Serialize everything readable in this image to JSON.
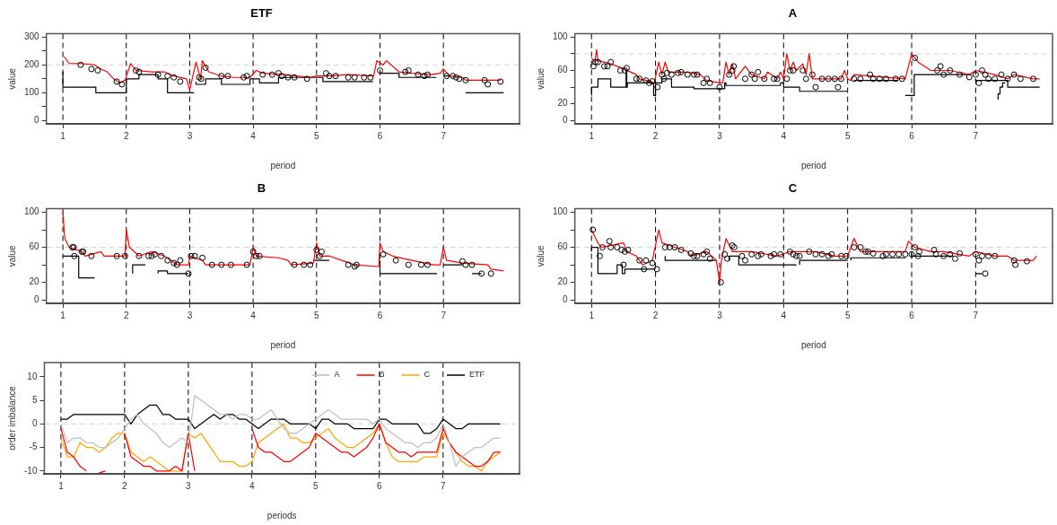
{
  "chart_data": [
    {
      "type": "line",
      "title": "ETF",
      "xlabel": "period",
      "ylabel": "value",
      "xlim": [
        0.74,
        8.2
      ],
      "xticks": [
        1,
        2,
        3,
        4,
        5,
        6,
        7
      ],
      "ylim": [
        -12,
        312
      ],
      "yticks": [
        0,
        {
          "value": 50,
          "label": null
        },
        100,
        {
          "value": 150,
          "label": null
        },
        200,
        {
          "value": 250,
          "label": null
        },
        300
      ],
      "grid": false,
      "ref_lines": [
        {
          "axis": "y",
          "value": 200,
          "color": "#d3d3d3",
          "line_style": "dashed"
        },
        {
          "axis": "x",
          "value": 1,
          "color": "#000000",
          "line_style": "dashed"
        },
        {
          "axis": "x",
          "value": 2,
          "color": "#000000",
          "line_style": "dashed"
        },
        {
          "axis": "x",
          "value": 3,
          "color": "#000000",
          "line_style": "dashed"
        },
        {
          "axis": "x",
          "value": 4,
          "color": "#000000",
          "line_style": "dashed"
        },
        {
          "axis": "x",
          "value": 5,
          "color": "#000000",
          "line_style": "dashed"
        },
        {
          "axis": "x",
          "value": 6,
          "color": "#000000",
          "line_style": "dashed"
        },
        {
          "axis": "x",
          "value": 7,
          "color": "#000000",
          "line_style": "dashed"
        }
      ],
      "series": [
        {
          "type": "line",
          "color": "#ff0000",
          "x": [
            1.02,
            1.1,
            1.3,
            1.5,
            1.6,
            1.7,
            1.8,
            1.9,
            1.98,
            2.07,
            2.15,
            2.4,
            2.6,
            2.75,
            2.95,
            3.0,
            3.1,
            3.17,
            3.2,
            3.3,
            3.5,
            3.7,
            3.95,
            4.05,
            4.15,
            4.5,
            4.9,
            5.0,
            5.2,
            5.5,
            5.9,
            5.95,
            6.05,
            6.1,
            6.3,
            6.5,
            6.8,
            6.95,
            7.0,
            7.1,
            7.3,
            7.35,
            7.6,
            7.9
          ],
          "values": [
            230,
            205,
            205,
            200,
            185,
            175,
            150,
            135,
            145,
            205,
            180,
            175,
            175,
            160,
            150,
            110,
            210,
            150,
            215,
            175,
            160,
            155,
            155,
            180,
            170,
            165,
            155,
            160,
            160,
            165,
            160,
            215,
            200,
            215,
            175,
            170,
            165,
            170,
            185,
            160,
            155,
            145,
            145,
            145
          ]
        },
        {
          "type": "step",
          "color": "#000000",
          "x": [
            1.0,
            1.52,
            2.0,
            2.2,
            2.5,
            2.65,
            2.8,
            3.07,
            3.08,
            3.1,
            3.25,
            3.5,
            3.95,
            4.1,
            4.4,
            5.1,
            5.5,
            5.89,
            5.9,
            6.0,
            6.3,
            6.6,
            6.89,
            6.9,
            7.0,
            7.09,
            7.1,
            7.35,
            7.95
          ],
          "values": [
            175,
            120,
            100,
            150,
            165,
            150,
            100,
            100,
            null,
            140,
            130,
            150,
            130,
            150,
            135,
            155,
            140,
            140,
            null,
            165,
            170,
            155,
            155,
            null,
            160,
            160,
            null,
            100,
            100
          ]
        },
        {
          "type": "scatter",
          "color": "#000000",
          "marker": "circle",
          "x": [
            1.28,
            1.45,
            1.55,
            1.85,
            1.93,
            2.15,
            2.2,
            2.5,
            2.65,
            2.75,
            2.85,
            3.15,
            3.18,
            3.25,
            3.5,
            3.6,
            3.85,
            3.9,
            4.15,
            4.3,
            4.4,
            4.45,
            4.55,
            4.65,
            4.85,
            5.15,
            5.2,
            5.3,
            5.5,
            5.6,
            5.75,
            5.85,
            6.0,
            6.4,
            6.45,
            6.6,
            6.7,
            6.75,
            7.05,
            7.15,
            7.2,
            7.25,
            7.35,
            7.65,
            7.7,
            7.9
          ],
          "values": [
            200,
            185,
            180,
            140,
            130,
            180,
            175,
            165,
            160,
            155,
            140,
            155,
            150,
            190,
            160,
            160,
            155,
            160,
            165,
            165,
            170,
            160,
            155,
            155,
            150,
            170,
            160,
            160,
            155,
            155,
            155,
            155,
            180,
            175,
            180,
            165,
            160,
            165,
            160,
            160,
            155,
            150,
            145,
            145,
            130,
            140
          ]
        }
      ]
    },
    {
      "type": "line",
      "title": "A",
      "xlabel": "period",
      "ylabel": "value",
      "xlim": [
        0.74,
        8.2
      ],
      "xticks": [
        1,
        2,
        3,
        4,
        5,
        6,
        7
      ],
      "ylim": [
        -4,
        104
      ],
      "yticks": [
        0,
        20,
        {
          "value": 40,
          "label": null
        },
        60,
        {
          "value": 80,
          "label": null
        },
        100
      ],
      "grid": false,
      "ref_lines": [
        {
          "axis": "y",
          "value": 80,
          "color": "#d3d3d3",
          "line_style": "dashed"
        },
        {
          "axis": "x",
          "value": 1,
          "color": "#000000",
          "line_style": "dashed"
        },
        {
          "axis": "x",
          "value": 2,
          "color": "#000000",
          "line_style": "dashed"
        },
        {
          "axis": "x",
          "value": 3,
          "color": "#000000",
          "line_style": "dashed"
        },
        {
          "axis": "x",
          "value": 4,
          "color": "#000000",
          "line_style": "dashed"
        },
        {
          "axis": "x",
          "value": 5,
          "color": "#000000",
          "line_style": "dashed"
        },
        {
          "axis": "x",
          "value": 6,
          "color": "#000000",
          "line_style": "dashed"
        },
        {
          "axis": "x",
          "value": 7,
          "color": "#000000",
          "line_style": "dashed"
        }
      ],
      "series": [
        {
          "type": "line",
          "color": "#ff0000",
          "x": [
            1.0,
            1.05,
            1.08,
            1.1,
            1.3,
            1.5,
            1.7,
            1.75,
            1.9,
            1.98,
            2.05,
            2.1,
            2.15,
            2.2,
            2.5,
            2.7,
            2.8,
            3.0,
            3.05,
            3.1,
            3.15,
            3.2,
            3.25,
            3.4,
            3.5,
            3.7,
            3.75,
            3.9,
            3.95,
            4.0,
            4.05,
            4.1,
            4.15,
            4.2,
            4.3,
            4.35,
            4.4,
            4.45,
            4.9,
            4.95,
            5.0,
            5.05,
            5.1,
            5.9,
            6.0,
            6.1,
            6.3,
            6.6,
            6.9,
            7.0,
            7.3,
            7.5,
            7.6,
            7.9,
            8.0
          ],
          "values": [
            75,
            70,
            85,
            72,
            68,
            62,
            55,
            50,
            47,
            45,
            70,
            55,
            70,
            58,
            58,
            55,
            48,
            45,
            45,
            70,
            55,
            68,
            50,
            65,
            55,
            50,
            58,
            50,
            58,
            50,
            80,
            60,
            70,
            60,
            68,
            55,
            80,
            50,
            50,
            60,
            50,
            48,
            55,
            50,
            80,
            70,
            60,
            60,
            55,
            60,
            55,
            50,
            55,
            50,
            50
          ]
        },
        {
          "type": "step",
          "color": "#000000",
          "x": [
            1.0,
            1.1,
            1.3,
            1.4,
            1.54,
            1.55,
            1.56,
            1.7,
            1.97,
            2.0,
            2.1,
            2.25,
            2.6,
            2.98,
            3.08,
            3.1,
            3.8,
            3.95,
            4.0,
            4.25,
            4.8,
            4.99,
            5.0,
            5.1,
            5.79,
            5.8,
            5.9,
            6.04,
            6.05,
            6.9,
            6.95,
            7.0,
            7.5,
            7.7,
            8.0
          ],
          "values": [
            30,
            40,
            50,
            40,
            40,
            60,
            40,
            45,
            45,
            30,
            45,
            50,
            40,
            38,
            38,
            45,
            42,
            42,
            45,
            40,
            35,
            35,
            null,
            48,
            48,
            null,
            30,
            30,
            55,
            55,
            null,
            50,
            48,
            40,
            40
          ]
        },
        {
          "type": "step",
          "color": "#000000",
          "x": [
            7.35,
            7.38,
            7.42,
            7.46
          ],
          "values": [
            25,
            32,
            40,
            45
          ]
        },
        {
          "type": "scatter",
          "color": "#000000",
          "marker": "circle",
          "x": [
            1.03,
            1.06,
            1.1,
            1.2,
            1.25,
            1.3,
            1.45,
            1.52,
            1.55,
            1.7,
            1.75,
            1.85,
            1.9,
            1.95,
            2.03,
            2.1,
            2.13,
            2.18,
            2.25,
            2.35,
            2.4,
            2.5,
            2.6,
            2.65,
            2.75,
            2.8,
            2.85,
            3.0,
            3.15,
            3.2,
            3.22,
            3.4,
            3.5,
            3.55,
            3.6,
            3.7,
            3.85,
            3.9,
            4.05,
            4.1,
            4.15,
            4.3,
            4.35,
            4.45,
            4.5,
            4.6,
            4.7,
            4.8,
            4.85,
            4.9,
            5.1,
            5.2,
            5.35,
            5.4,
            5.5,
            5.6,
            5.75,
            5.85,
            6.05,
            6.4,
            6.45,
            6.5,
            6.6,
            6.75,
            6.9,
            7.0,
            7.05,
            7.1,
            7.15,
            7.2,
            7.3,
            7.4,
            7.5,
            7.6,
            7.7,
            7.9
          ],
          "values": [
            65,
            70,
            70,
            65,
            65,
            70,
            60,
            60,
            63,
            50,
            50,
            48,
            45,
            47,
            40,
            55,
            50,
            57,
            55,
            57,
            58,
            55,
            55,
            55,
            45,
            50,
            45,
            40,
            55,
            60,
            65,
            50,
            55,
            50,
            58,
            50,
            50,
            50,
            50,
            60,
            60,
            60,
            50,
            55,
            40,
            50,
            50,
            50,
            40,
            50,
            50,
            50,
            55,
            50,
            50,
            50,
            50,
            50,
            75,
            60,
            65,
            55,
            60,
            55,
            52,
            55,
            45,
            60,
            55,
            50,
            50,
            55,
            50,
            55,
            50,
            50
          ]
        }
      ]
    },
    {
      "type": "line",
      "title": "B",
      "xlabel": "period",
      "ylabel": "value",
      "xlim": [
        0.74,
        8.2
      ],
      "xticks": [
        1,
        2,
        3,
        4,
        5,
        6,
        7
      ],
      "ylim": [
        -4,
        104
      ],
      "yticks": [
        0,
        20,
        {
          "value": 40,
          "label": null
        },
        60,
        {
          "value": 80,
          "label": null
        },
        100
      ],
      "grid": false,
      "ref_lines": [
        {
          "axis": "y",
          "value": 60,
          "color": "#d3d3d3",
          "line_style": "dashed"
        },
        {
          "axis": "x",
          "value": 1,
          "color": "#000000",
          "line_style": "dashed"
        },
        {
          "axis": "x",
          "value": 2,
          "color": "#000000",
          "line_style": "dashed"
        },
        {
          "axis": "x",
          "value": 3,
          "color": "#000000",
          "line_style": "dashed"
        },
        {
          "axis": "x",
          "value": 4,
          "color": "#000000",
          "line_style": "dashed"
        },
        {
          "axis": "x",
          "value": 5,
          "color": "#000000",
          "line_style": "dashed"
        },
        {
          "axis": "x",
          "value": 6,
          "color": "#000000",
          "line_style": "dashed"
        },
        {
          "axis": "x",
          "value": 7,
          "color": "#000000",
          "line_style": "dashed"
        }
      ],
      "series": [
        {
          "type": "line",
          "color": "#ff0000",
          "x": [
            1.0,
            1.03,
            1.1,
            1.3,
            1.35,
            1.6,
            1.65,
            1.9,
            1.98,
            2.0,
            2.05,
            2.2,
            2.4,
            2.6,
            2.8,
            2.98,
            3.0,
            3.2,
            3.25,
            3.95,
            4.0,
            4.05,
            4.4,
            4.55,
            4.6,
            4.95,
            5.0,
            5.05,
            5.2,
            5.4,
            5.6,
            5.98,
            6.0,
            6.05,
            6.2,
            6.5,
            6.85,
            6.95,
            7.0,
            7.05,
            7.3,
            7.7,
            7.75,
            7.95
          ],
          "values": [
            100,
            70,
            60,
            55,
            50,
            55,
            50,
            50,
            50,
            80,
            60,
            50,
            55,
            50,
            40,
            40,
            50,
            45,
            40,
            40,
            60,
            50,
            48,
            45,
            40,
            42,
            65,
            50,
            50,
            45,
            40,
            38,
            65,
            55,
            50,
            45,
            40,
            40,
            60,
            45,
            42,
            40,
            35,
            33
          ]
        },
        {
          "type": "step",
          "color": "#000000",
          "x": [
            1.0,
            1.25,
            1.42,
            1.5,
            1.51,
            2.1,
            2.2,
            2.3,
            2.31,
            2.5,
            2.65,
            2.7,
            2.98,
            2.99,
            4.95,
            5.2,
            5.21,
            6.0,
            6.25,
            6.9,
            6.91,
            7.0,
            7.3,
            7.31,
            7.45,
            7.6
          ],
          "values": [
            50,
            50,
            25,
            25,
            null,
            30,
            40,
            40,
            null,
            30,
            33,
            30,
            30,
            null,
            45,
            45,
            null,
            45,
            30,
            30,
            null,
            40,
            40,
            null,
            30,
            30
          ]
        },
        {
          "type": "scatter",
          "color": "#000000",
          "marker": "circle",
          "x": [
            1.15,
            1.17,
            1.18,
            1.3,
            1.32,
            1.45,
            1.85,
            1.98,
            2.2,
            2.35,
            2.4,
            2.45,
            2.55,
            2.65,
            2.75,
            2.8,
            2.85,
            2.98,
            3.02,
            3.08,
            3.2,
            3.35,
            3.5,
            3.65,
            3.9,
            4.0,
            4.05,
            4.1,
            4.65,
            4.8,
            4.9,
            5.0,
            5.05,
            5.08,
            5.5,
            5.6,
            5.63,
            6.05,
            6.25,
            6.45,
            6.65,
            6.75,
            7.3,
            7.35,
            7.45,
            7.6,
            7.75
          ],
          "values": [
            60,
            60,
            50,
            55,
            55,
            50,
            50,
            50,
            50,
            50,
            50,
            52,
            50,
            45,
            42,
            40,
            45,
            30,
            50,
            50,
            48,
            40,
            40,
            40,
            40,
            55,
            50,
            50,
            40,
            40,
            40,
            57,
            50,
            55,
            40,
            38,
            40,
            52,
            45,
            40,
            40,
            40,
            44,
            40,
            40,
            30,
            30
          ]
        }
      ]
    },
    {
      "type": "line",
      "title": "C",
      "xlabel": "period",
      "ylabel": "value",
      "xlim": [
        0.74,
        8.2
      ],
      "xticks": [
        1,
        2,
        3,
        4,
        5,
        6,
        7
      ],
      "ylim": [
        -4,
        104
      ],
      "yticks": [
        0,
        20,
        {
          "value": 40,
          "label": null
        },
        60,
        {
          "value": 80,
          "label": null
        },
        100
      ],
      "grid": false,
      "ref_lines": [
        {
          "axis": "y",
          "value": 60,
          "color": "#d3d3d3",
          "line_style": "dashed"
        },
        {
          "axis": "x",
          "value": 1,
          "color": "#000000",
          "line_style": "dashed"
        },
        {
          "axis": "x",
          "value": 2,
          "color": "#000000",
          "line_style": "dashed"
        },
        {
          "axis": "x",
          "value": 3,
          "color": "#000000",
          "line_style": "dashed"
        },
        {
          "axis": "x",
          "value": 4,
          "color": "#000000",
          "line_style": "dashed"
        },
        {
          "axis": "x",
          "value": 5,
          "color": "#000000",
          "line_style": "dashed"
        },
        {
          "axis": "x",
          "value": 6,
          "color": "#000000",
          "line_style": "dashed"
        },
        {
          "axis": "x",
          "value": 7,
          "color": "#000000",
          "line_style": "dashed"
        }
      ],
      "series": [
        {
          "type": "line",
          "color": "#ff0000",
          "x": [
            1.0,
            1.1,
            1.15,
            1.5,
            1.55,
            1.7,
            1.8,
            1.95,
            2.05,
            2.1,
            2.3,
            2.5,
            2.55,
            2.8,
            2.95,
            3.0,
            3.03,
            3.1,
            3.2,
            3.5,
            3.9,
            4.1,
            4.5,
            4.8,
            5.0,
            5.1,
            5.2,
            5.5,
            5.9,
            5.95,
            6.05,
            6.3,
            6.5,
            6.9,
            7.0,
            7.3,
            7.5,
            7.6,
            7.9,
            7.95
          ],
          "values": [
            80,
            65,
            60,
            65,
            55,
            50,
            40,
            45,
            80,
            65,
            60,
            55,
            50,
            55,
            45,
            20,
            45,
            70,
            55,
            55,
            50,
            55,
            55,
            50,
            50,
            70,
            55,
            55,
            55,
            67,
            60,
            55,
            55,
            50,
            55,
            50,
            50,
            45,
            45,
            50
          ]
        },
        {
          "type": "step",
          "color": "#000000",
          "x": [
            1.0,
            1.1,
            1.4,
            1.48,
            1.52,
            1.8,
            2.0,
            2.01,
            2.15,
            2.45,
            2.95,
            2.96,
            3.15,
            3.3,
            3.45,
            4.2,
            4.21,
            4.25,
            4.35,
            5.0,
            5.01,
            5.05,
            5.3,
            5.9,
            5.91,
            6.0,
            6.55,
            6.65,
            6.66,
            7.0,
            7.1
          ],
          "values": [
            55,
            60,
            30,
            40,
            30,
            35,
            35,
            null,
            50,
            45,
            45,
            null,
            45,
            50,
            40,
            40,
            null,
            40,
            45,
            45,
            null,
            45,
            48,
            48,
            null,
            55,
            50,
            50,
            null,
            30,
            30
          ]
        },
        {
          "type": "scatter",
          "color": "#000000",
          "marker": "circle",
          "x": [
            1.02,
            1.13,
            1.17,
            1.28,
            1.3,
            1.4,
            1.47,
            1.5,
            1.52,
            1.57,
            1.75,
            1.82,
            1.85,
            1.95,
            2.02,
            2.15,
            2.22,
            2.3,
            2.4,
            2.55,
            2.6,
            2.65,
            2.75,
            2.8,
            2.85,
            3.02,
            3.08,
            3.12,
            3.2,
            3.23,
            3.35,
            3.4,
            3.5,
            3.6,
            3.65,
            3.8,
            3.85,
            3.95,
            4.1,
            4.15,
            4.2,
            4.25,
            4.4,
            4.5,
            4.6,
            4.7,
            4.75,
            4.9,
            4.98,
            5.1,
            5.2,
            5.28,
            5.32,
            5.4,
            5.55,
            5.6,
            5.7,
            5.8,
            5.9,
            6.0,
            6.05,
            6.1,
            6.12,
            6.35,
            6.38,
            6.5,
            6.6,
            6.68,
            6.75,
            7.0,
            7.05,
            7.1,
            7.15,
            7.2,
            7.3,
            7.6,
            7.62,
            7.8
          ],
          "values": [
            80,
            50,
            60,
            67,
            60,
            60,
            57,
            40,
            55,
            57,
            45,
            35,
            45,
            42,
            35,
            60,
            60,
            60,
            57,
            53,
            50,
            50,
            52,
            55,
            47,
            20,
            52,
            47,
            62,
            60,
            50,
            45,
            52,
            50,
            52,
            50,
            52,
            52,
            55,
            52,
            50,
            50,
            55,
            52,
            52,
            50,
            52,
            50,
            50,
            60,
            60,
            55,
            55,
            53,
            50,
            52,
            52,
            52,
            52,
            52,
            60,
            50,
            55,
            57,
            52,
            50,
            52,
            47,
            53,
            52,
            45,
            50,
            30,
            50,
            50,
            45,
            40,
            44
          ]
        }
      ]
    },
    {
      "type": "line",
      "xlabel": "periods",
      "ylabel": "order imbalance",
      "xlim": [
        0.74,
        8.2
      ],
      "xticks": [
        1,
        2,
        3,
        4,
        5,
        6,
        7
      ],
      "ylim": [
        -10.6,
        13
      ],
      "yticks": [
        -10,
        -5,
        0,
        5,
        10
      ],
      "grid": false,
      "legend": "top right",
      "ref_lines": [
        {
          "axis": "y",
          "value": 0,
          "color": "#d3d3d3",
          "line_style": "dashed"
        },
        {
          "axis": "x",
          "value": 1,
          "color": "#000000",
          "line_style": "dashed"
        },
        {
          "axis": "x",
          "value": 2,
          "color": "#000000",
          "line_style": "dashed"
        },
        {
          "axis": "x",
          "value": 3,
          "color": "#000000",
          "line_style": "dashed"
        },
        {
          "axis": "x",
          "value": 4,
          "color": "#000000",
          "line_style": "dashed"
        },
        {
          "axis": "x",
          "value": 5,
          "color": "#000000",
          "line_style": "dashed"
        },
        {
          "axis": "x",
          "value": 6,
          "color": "#000000",
          "line_style": "dashed"
        },
        {
          "axis": "x",
          "value": 7,
          "color": "#000000",
          "line_style": "dashed"
        }
      ],
      "x": [
        1.0,
        1.1,
        1.2,
        1.3,
        1.4,
        1.5,
        1.6,
        1.7,
        1.8,
        1.9,
        2.0,
        2.1,
        2.2,
        2.3,
        2.4,
        2.5,
        2.6,
        2.7,
        2.8,
        2.9,
        3.0,
        3.1,
        3.2,
        3.3,
        3.4,
        3.5,
        3.6,
        3.7,
        3.8,
        3.9,
        4.0,
        4.1,
        4.2,
        4.3,
        4.4,
        4.5,
        4.6,
        4.7,
        4.8,
        4.9,
        5.0,
        5.1,
        5.2,
        5.3,
        5.4,
        5.5,
        5.6,
        5.7,
        5.8,
        5.9,
        6.0,
        6.1,
        6.2,
        6.3,
        6.4,
        6.5,
        6.6,
        6.7,
        6.8,
        6.9,
        7.0,
        7.1,
        7.2,
        7.3,
        7.4,
        7.5,
        7.6,
        7.7,
        7.8,
        7.9
      ],
      "series": [
        {
          "name": "A",
          "type": "line",
          "color": "#bebebe",
          "values": [
            0,
            -4,
            -3,
            -3,
            -4,
            -4,
            -5,
            -5,
            -4,
            -3,
            -1,
            1,
            2,
            0,
            -1,
            -2,
            -4,
            -5,
            -4,
            -3,
            -4,
            6,
            5,
            4,
            3,
            2,
            2,
            1,
            2,
            2,
            1,
            1,
            2,
            3,
            1,
            -1,
            -2,
            -2,
            -1,
            0,
            1,
            2,
            3,
            2,
            1,
            1,
            1,
            1,
            1,
            0,
            1,
            -1,
            -2,
            -3,
            -4,
            -4,
            -5,
            -4,
            -4,
            -3,
            0,
            -4,
            -9,
            -7,
            -6,
            -5,
            -5,
            -4,
            -3,
            -3
          ]
        },
        {
          "name": "B",
          "type": "line",
          "color": "#ff0000",
          "values": [
            -1,
            -6,
            -7,
            -9,
            -10,
            null,
            -10.4,
            -10,
            null,
            null,
            -2,
            -7,
            -8,
            -9,
            -9,
            -10,
            -10,
            -10,
            -9,
            -10,
            -2,
            -10,
            null,
            null,
            null,
            null,
            null,
            null,
            null,
            null,
            -1,
            -5,
            -6,
            -6,
            -7,
            -8,
            -8,
            -7,
            -6,
            -5,
            -2,
            -3,
            -4,
            -5,
            -6,
            -6,
            -7,
            -6,
            -5,
            -3,
            0,
            -4,
            -5,
            -6,
            -6,
            -7,
            -6,
            -6,
            -6,
            -6,
            -1,
            -4,
            -6,
            -7,
            -8,
            -9,
            -9,
            -8,
            -6,
            -6
          ]
        },
        {
          "name": "C",
          "type": "line",
          "color": "#ffa500",
          "values": [
            -3,
            -7,
            -7,
            -4,
            -5,
            -5,
            -6,
            -5,
            -3,
            -2,
            -2,
            -6,
            -7,
            -8,
            -7,
            -8,
            -9,
            -10,
            -10,
            -10,
            -2,
            -3,
            -2,
            -4,
            -6,
            -8,
            -8,
            -8,
            -9,
            -9,
            -8,
            -4,
            -3,
            -2,
            -1,
            0,
            -3,
            -3,
            -4,
            -4,
            -3,
            -2,
            -1,
            -3,
            -4,
            -5,
            -5,
            -4,
            -3,
            -2,
            0,
            -4,
            -7,
            -8,
            -8,
            -8,
            -8,
            -7,
            -7,
            -7,
            -2,
            -4,
            -6,
            -8,
            -9,
            -9,
            -10,
            -8,
            -7,
            -6
          ]
        },
        {
          "name": "ETF",
          "type": "line",
          "color": "#000000",
          "values": [
            1,
            1,
            2,
            2,
            2,
            2,
            2,
            2,
            2,
            2,
            2,
            0,
            2,
            3,
            4,
            4,
            2,
            2,
            1,
            1,
            1,
            -1,
            0,
            1,
            2,
            1,
            2,
            2,
            1,
            1,
            0,
            -1,
            0,
            1,
            1,
            1,
            0,
            0,
            0,
            0,
            -1,
            1,
            1,
            0,
            0,
            0,
            -1,
            -1,
            -1,
            -1,
            1,
            1,
            0,
            0,
            0,
            0,
            0,
            -2,
            -2,
            -1,
            1,
            0,
            -1,
            -1,
            0,
            0,
            0,
            0,
            0,
            0
          ]
        }
      ]
    }
  ]
}
